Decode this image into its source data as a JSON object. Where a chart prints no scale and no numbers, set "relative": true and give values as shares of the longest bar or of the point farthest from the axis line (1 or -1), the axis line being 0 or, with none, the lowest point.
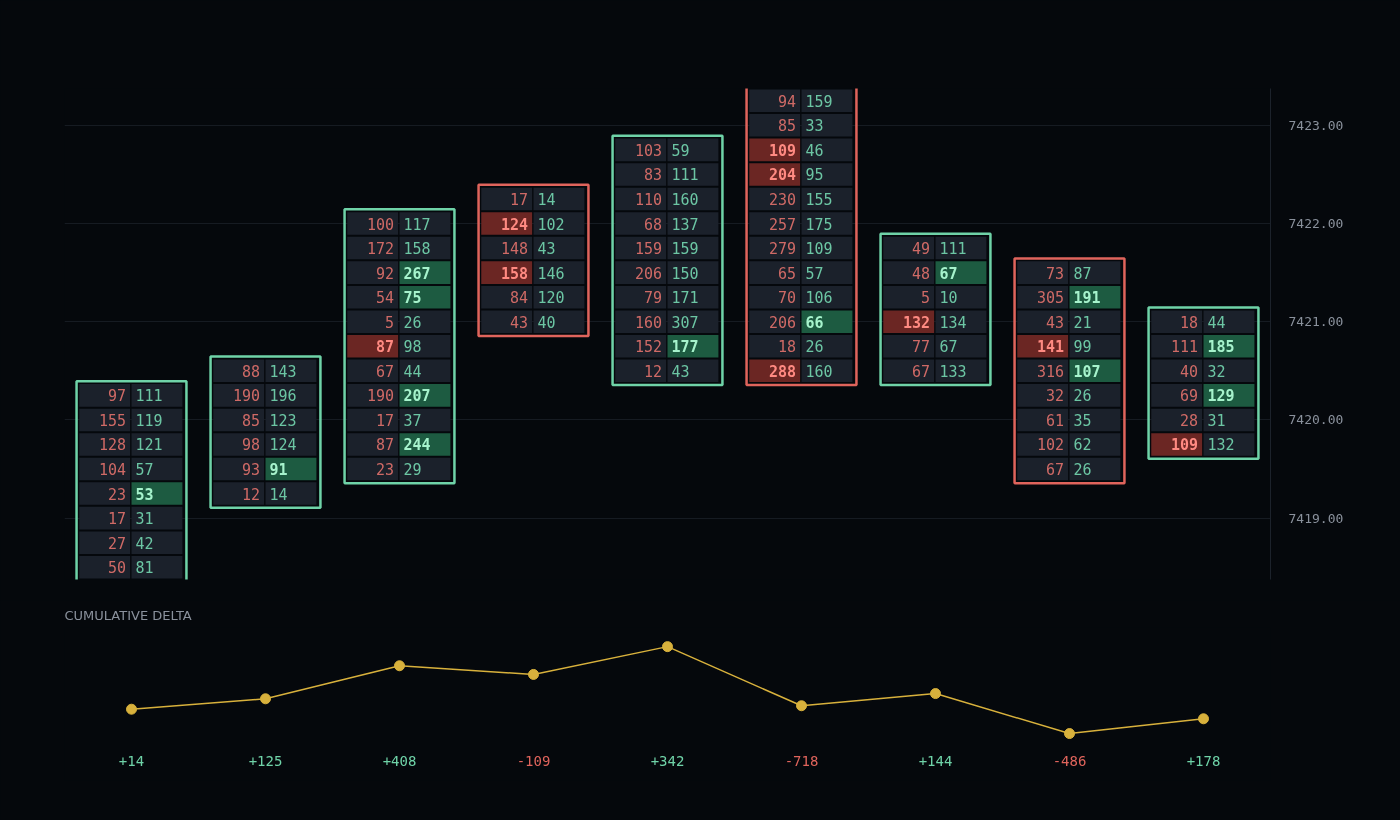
{
  "chart_data": [
    {
      "type": "heatmap",
      "categories": [
        null,
        null,
        null,
        null,
        null,
        null,
        null,
        null,
        null,
        null,
        null,
        null,
        null,
        null,
        null,
        null,
        null,
        null
      ],
      "ylim": [
        7418.375,
        7423.375
      ],
      "yticks": [
        {
          "value": 7419,
          "label": "7419.00"
        },
        {
          "value": 7420,
          "label": "7420.00"
        },
        {
          "value": 7421,
          "label": "7421.00"
        },
        {
          "value": 7422,
          "label": "7422.00"
        },
        {
          "value": 7423,
          "label": "7423.00"
        }
      ],
      "grid": "y",
      "data_labels": true,
      "cells": [
        [
          null,
          null,
          null,
          null,
          null,
          null,
          null,
          null,
          null,
          null,
          94,
          159,
          null,
          null,
          null,
          null,
          null,
          null
        ],
        [
          null,
          null,
          null,
          null,
          null,
          null,
          null,
          null,
          null,
          null,
          85,
          33,
          null,
          null,
          null,
          null,
          null,
          null
        ],
        [
          null,
          null,
          null,
          null,
          null,
          null,
          null,
          null,
          103,
          59,
          109,
          46,
          null,
          null,
          null,
          null,
          null,
          null
        ],
        [
          null,
          null,
          null,
          null,
          null,
          null,
          null,
          null,
          83,
          111,
          204,
          95,
          null,
          null,
          null,
          null,
          null,
          null
        ],
        [
          null,
          null,
          null,
          null,
          null,
          null,
          17,
          14,
          110,
          160,
          230,
          155,
          null,
          null,
          null,
          null,
          null,
          null
        ],
        [
          null,
          null,
          null,
          null,
          100,
          117,
          124,
          102,
          68,
          137,
          257,
          175,
          null,
          null,
          null,
          null,
          null,
          null
        ],
        [
          null,
          null,
          null,
          null,
          172,
          158,
          148,
          43,
          159,
          159,
          279,
          109,
          49,
          111,
          null,
          null,
          null,
          null
        ],
        [
          null,
          null,
          null,
          null,
          92,
          267,
          158,
          146,
          206,
          150,
          65,
          57,
          48,
          67,
          73,
          87,
          null,
          null
        ],
        [
          null,
          null,
          null,
          null,
          54,
          75,
          84,
          120,
          79,
          171,
          70,
          106,
          5,
          10,
          305,
          191,
          null,
          null
        ],
        [
          null,
          null,
          null,
          null,
          5,
          26,
          43,
          40,
          160,
          307,
          206,
          66,
          132,
          134,
          43,
          21,
          18,
          44
        ],
        [
          null,
          null,
          null,
          null,
          87,
          98,
          null,
          null,
          152,
          177,
          18,
          26,
          77,
          67,
          141,
          99,
          111,
          185
        ],
        [
          null,
          null,
          88,
          143,
          67,
          44,
          null,
          null,
          12,
          43,
          288,
          160,
          67,
          133,
          316,
          107,
          40,
          32
        ],
        [
          97,
          111,
          190,
          196,
          190,
          207,
          null,
          null,
          null,
          null,
          null,
          null,
          null,
          null,
          32,
          26,
          69,
          129
        ],
        [
          155,
          119,
          85,
          123,
          17,
          37,
          null,
          null,
          null,
          null,
          null,
          null,
          null,
          null,
          61,
          35,
          28,
          31
        ],
        [
          128,
          121,
          98,
          124,
          87,
          244,
          null,
          null,
          null,
          null,
          null,
          null,
          null,
          null,
          102,
          62,
          109,
          132
        ],
        [
          104,
          57,
          93,
          91,
          23,
          29,
          null,
          null,
          null,
          null,
          null,
          null,
          null,
          null,
          67,
          26,
          null,
          null
        ],
        [
          23,
          53,
          12,
          14,
          null,
          null,
          null,
          null,
          null,
          null,
          null,
          null,
          null,
          null,
          null,
          null,
          null,
          null
        ],
        [
          17,
          31,
          null,
          null,
          null,
          null,
          null,
          null,
          null,
          null,
          null,
          null,
          null,
          null,
          null,
          null,
          null,
          null
        ],
        [
          27,
          42,
          null,
          null,
          null,
          null,
          null,
          null,
          null,
          null,
          null,
          null,
          null,
          null,
          null,
          null,
          null,
          null
        ],
        [
          50,
          81,
          null,
          null,
          null,
          null,
          null,
          null,
          null,
          null,
          null,
          null,
          null,
          null,
          null,
          null,
          null,
          null
        ]
      ],
      "colors": [
        [
          null,
          null,
          null,
          null,
          null,
          null,
          null,
          null,
          null,
          null,
          "#1b212b",
          "#1b212b",
          null,
          null,
          null,
          null,
          null,
          null
        ],
        [
          null,
          null,
          null,
          null,
          null,
          null,
          null,
          null,
          null,
          null,
          "#1b212b",
          "#1b212b",
          null,
          null,
          null,
          null,
          null,
          null
        ],
        [
          null,
          null,
          null,
          null,
          null,
          null,
          null,
          null,
          "#1b212b",
          "#1b212b",
          "#6b2623",
          "#1b212b",
          null,
          null,
          null,
          null,
          null,
          null
        ],
        [
          null,
          null,
          null,
          null,
          null,
          null,
          null,
          null,
          "#1b212b",
          "#1b212b",
          "#6b2623",
          "#1b212b",
          null,
          null,
          null,
          null,
          null,
          null
        ],
        [
          null,
          null,
          null,
          null,
          null,
          null,
          "#1b212b",
          "#1b212b",
          "#1b212b",
          "#1b212b",
          "#1b212b",
          "#1b212b",
          null,
          null,
          null,
          null,
          null,
          null
        ],
        [
          null,
          null,
          null,
          null,
          "#1b212b",
          "#1b212b",
          "#6b2623",
          "#1b212b",
          "#1b212b",
          "#1b212b",
          "#1b212b",
          "#1b212b",
          null,
          null,
          null,
          null,
          null,
          null
        ],
        [
          null,
          null,
          null,
          null,
          "#1b212b",
          "#1b212b",
          "#1b212b",
          "#1b212b",
          "#1b212b",
          "#1b212b",
          "#1b212b",
          "#1b212b",
          "#1b212b",
          "#1b212b",
          null,
          null,
          null,
          null
        ],
        [
          null,
          null,
          null,
          null,
          "#1b212b",
          "#1d5b41",
          "#6b2623",
          "#1b212b",
          "#1b212b",
          "#1b212b",
          "#1b212b",
          "#1b212b",
          "#1b212b",
          "#1d5b41",
          "#1b212b",
          "#1b212b",
          null,
          null
        ],
        [
          null,
          null,
          null,
          null,
          "#1b212b",
          "#1d5b41",
          "#1b212b",
          "#1b212b",
          "#1b212b",
          "#1b212b",
          "#1b212b",
          "#1b212b",
          "#1b212b",
          "#1b212b",
          "#1b212b",
          "#1d5b41",
          null,
          null
        ],
        [
          null,
          null,
          null,
          null,
          "#1b212b",
          "#1b212b",
          "#1b212b",
          "#1b212b",
          "#1b212b",
          "#1b212b",
          "#1b212b",
          "#1d5b41",
          "#6b2623",
          "#1b212b",
          "#1b212b",
          "#1b212b",
          "#1b212b",
          "#1b212b"
        ],
        [
          null,
          null,
          null,
          null,
          "#6b2623",
          "#1b212b",
          null,
          null,
          "#1b212b",
          "#1d5b41",
          "#1b212b",
          "#1b212b",
          "#1b212b",
          "#1b212b",
          "#6b2623",
          "#1b212b",
          "#1b212b",
          "#1d5b41"
        ],
        [
          null,
          null,
          "#1b212b",
          "#1b212b",
          "#1b212b",
          "#1b212b",
          null,
          null,
          "#1b212b",
          "#1b212b",
          "#6b2623",
          "#1b212b",
          "#1b212b",
          "#1b212b",
          "#1b212b",
          "#1d5b41",
          "#1b212b",
          "#1b212b"
        ],
        [
          "#1b212b",
          "#1b212b",
          "#1b212b",
          "#1b212b",
          "#1b212b",
          "#1d5b41",
          null,
          null,
          null,
          null,
          null,
          null,
          null,
          null,
          "#1b212b",
          "#1b212b",
          "#1b212b",
          "#1d5b41"
        ],
        [
          "#1b212b",
          "#1b212b",
          "#1b212b",
          "#1b212b",
          "#1b212b",
          "#1b212b",
          null,
          null,
          null,
          null,
          null,
          null,
          null,
          null,
          "#1b212b",
          "#1b212b",
          "#1b212b",
          "#1b212b"
        ],
        [
          "#1b212b",
          "#1b212b",
          "#1b212b",
          "#1b212b",
          "#1b212b",
          "#1d5b41",
          null,
          null,
          null,
          null,
          null,
          null,
          null,
          null,
          "#1b212b",
          "#1b212b",
          "#6b2623",
          "#1b212b"
        ],
        [
          "#1b212b",
          "#1b212b",
          "#1b212b",
          "#1d5b41",
          "#1b212b",
          "#1b212b",
          null,
          null,
          null,
          null,
          null,
          null,
          null,
          null,
          "#1b212b",
          "#1b212b",
          null,
          null
        ],
        [
          "#1b212b",
          "#1d5b41",
          "#1b212b",
          "#1b212b",
          null,
          null,
          null,
          null,
          null,
          null,
          null,
          null,
          null,
          null,
          null,
          null,
          null,
          null
        ],
        [
          "#1b212b",
          "#1b212b",
          null,
          null,
          null,
          null,
          null,
          null,
          null,
          null,
          null,
          null,
          null,
          null,
          null,
          null,
          null,
          null
        ],
        [
          "#1b212b",
          "#1b212b",
          null,
          null,
          null,
          null,
          null,
          null,
          null,
          null,
          null,
          null,
          null,
          null,
          null,
          null,
          null,
          null
        ],
        [
          "#1b212b",
          "#1b212b",
          null,
          null,
          null,
          null,
          null,
          null,
          null,
          null,
          null,
          null,
          null,
          null,
          null,
          null,
          null,
          null
        ]
      ]
    },
    {
      "type": "line",
      "title": "CUMULATIVE DELTA",
      "categories": [
        "+14",
        "+125",
        "+408",
        "-109",
        "+342",
        "-718",
        "+144",
        "-486",
        "+178"
      ],
      "relative": true,
      "marker": "circle",
      "series": [
        {
          "color": "#d8b13c",
          "values": [
            0.28,
            0.4,
            0.78,
            0.68,
            1,
            0.32,
            0.46,
            0,
            0.17
          ]
        }
      ]
    }
  ]
}
